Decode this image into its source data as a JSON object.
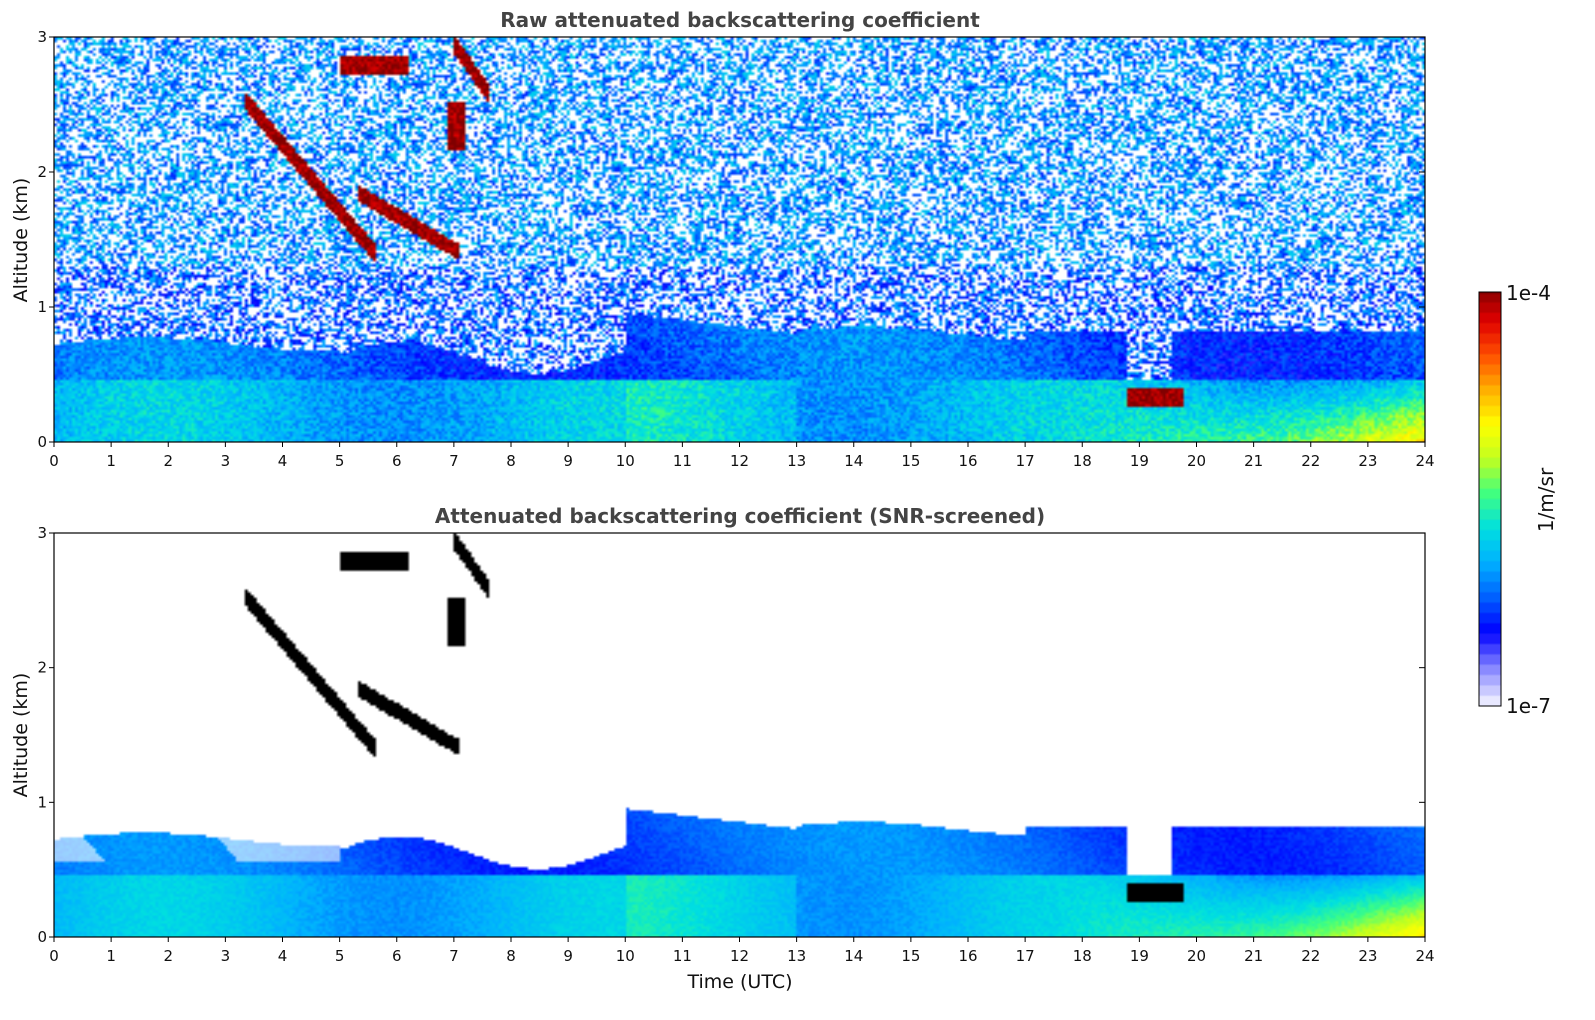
{
  "chart_data": [
    {
      "type": "heatmap",
      "title": "Raw attenuated backscattering coefficient",
      "xlabel": "",
      "ylabel": "Altitude (km)",
      "xlim": [
        0,
        24
      ],
      "ylim": [
        0,
        3
      ],
      "xticks": [
        "0",
        "1",
        "2",
        "3",
        "4",
        "5",
        "6",
        "7",
        "8",
        "9",
        "10",
        "11",
        "12",
        "13",
        "14",
        "15",
        "16",
        "17",
        "18",
        "19",
        "20",
        "21",
        "22",
        "23",
        "24"
      ],
      "yticks": [
        "0",
        "1",
        "2",
        "3"
      ],
      "screened": false
    },
    {
      "type": "heatmap",
      "title": "Attenuated backscattering coefficient (SNR-screened)",
      "xlabel": "Time (UTC)",
      "ylabel": "Altitude (km)",
      "xlim": [
        0,
        24
      ],
      "ylim": [
        0,
        3
      ],
      "xticks": [
        "0",
        "1",
        "2",
        "3",
        "4",
        "5",
        "6",
        "7",
        "8",
        "9",
        "10",
        "11",
        "12",
        "13",
        "14",
        "15",
        "16",
        "17",
        "18",
        "19",
        "20",
        "21",
        "22",
        "23",
        "24"
      ],
      "yticks": [
        "0",
        "1",
        "2",
        "3"
      ],
      "screened": true
    }
  ],
  "colorbar": {
    "label": "1/m/sr",
    "max_label": "1e-4",
    "min_label": "1e-7",
    "scale": "log",
    "range": [
      1e-07,
      0.0001
    ],
    "colors": [
      "#e8e8ff",
      "#8080ff",
      "#0000ff",
      "#0060ff",
      "#00b0ff",
      "#00e0e0",
      "#40ff80",
      "#c0ff20",
      "#ffff00",
      "#ffb000",
      "#ff5000",
      "#e00000",
      "#800000"
    ]
  }
}
